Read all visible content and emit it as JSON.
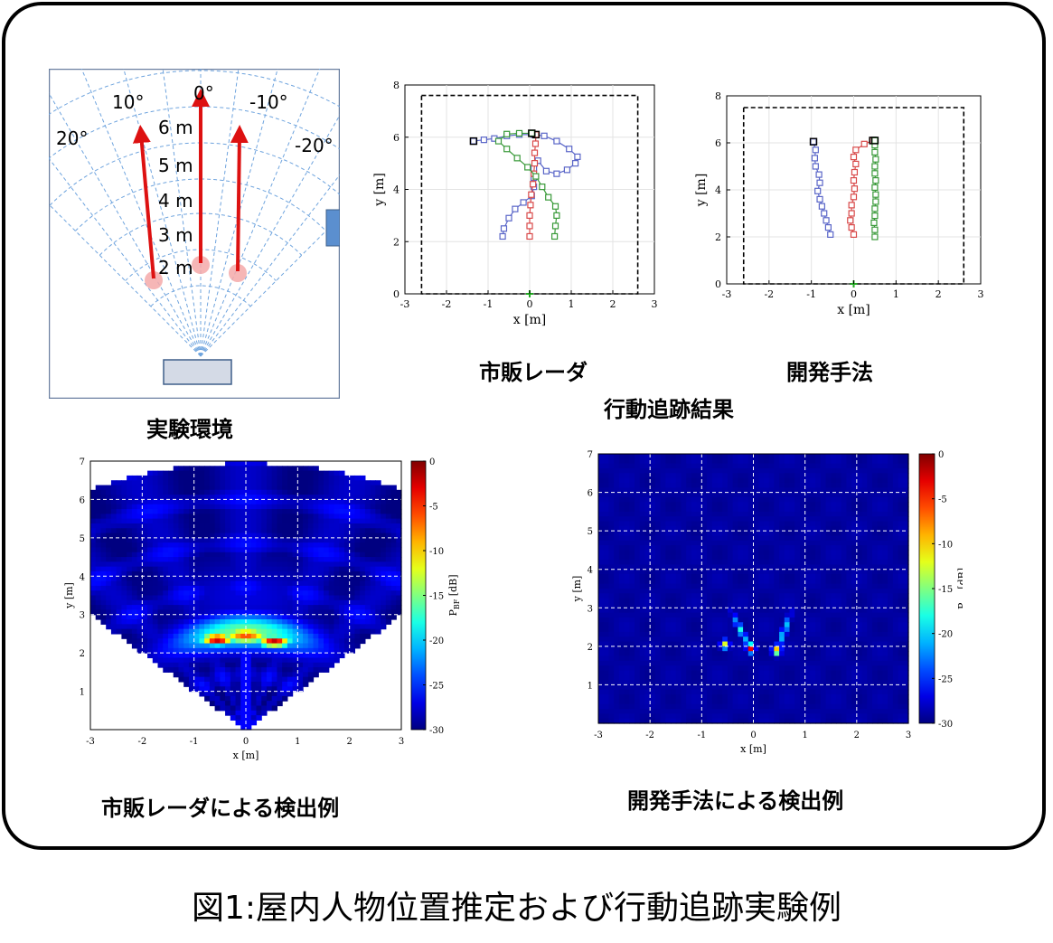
{
  "figure_title": "図1:屋内人物位置推定および行動追跡実験例",
  "captions": {
    "environment": "実験環境",
    "radar_track": "市販レーダ",
    "proposed_track": "開発手法",
    "tracking_result": "行動追跡結果",
    "radar_detect": "市販レーダによる検出例",
    "proposed_detect": "開発手法による検出例"
  },
  "environment": {
    "angle_labels": [
      "20°",
      "10°",
      "0°",
      "-10°",
      "-20°"
    ],
    "range_labels": [
      "6 m",
      "5 m",
      "4 m",
      "3 m",
      "2 m"
    ],
    "arrow_color": "#dd1111",
    "grid_color": "#6fa4de"
  },
  "chart_data": [
    {
      "type": "line",
      "name": "radar-tracks",
      "xlabel": "x [m]",
      "ylabel": "y [m]",
      "xlim": [
        -3,
        3
      ],
      "ylim": [
        0,
        8
      ],
      "xticks": [
        "-3",
        "-2",
        "-1",
        "0",
        "1",
        "2",
        "3"
      ],
      "yticks": [
        "0",
        "2",
        "4",
        "6",
        "8"
      ],
      "room_box": {
        "x": [
          -2.6,
          2.6
        ],
        "y": [
          0,
          7.6
        ]
      },
      "grid": true,
      "series": [
        {
          "color": "#5a66c8",
          "points": [
            [
              -0.65,
              2.2
            ],
            [
              -0.62,
              2.5
            ],
            [
              -0.5,
              2.9
            ],
            [
              -0.35,
              3.25
            ],
            [
              -0.15,
              3.5
            ],
            [
              0.05,
              3.75
            ],
            [
              0.1,
              4.1
            ],
            [
              0.1,
              4.45
            ],
            [
              0.1,
              4.8
            ],
            [
              0.2,
              5.1
            ],
            [
              0.4,
              4.7
            ],
            [
              0.65,
              4.6
            ],
            [
              0.9,
              4.75
            ],
            [
              1.1,
              5.0
            ],
            [
              1.15,
              5.25
            ],
            [
              0.95,
              5.55
            ],
            [
              0.65,
              5.85
            ],
            [
              0.35,
              6.05
            ],
            [
              0.1,
              6.1
            ],
            [
              -0.25,
              6.1
            ],
            [
              -0.55,
              6.05
            ],
            [
              -0.85,
              5.95
            ],
            [
              -1.1,
              5.9
            ],
            [
              -1.35,
              5.85
            ]
          ]
        },
        {
          "color": "#d94a4a",
          "points": [
            [
              0.0,
              2.2
            ],
            [
              0.0,
              2.6
            ],
            [
              0.0,
              3.0
            ],
            [
              0.02,
              3.4
            ],
            [
              0.04,
              3.8
            ],
            [
              0.08,
              4.2
            ],
            [
              0.1,
              4.6
            ],
            [
              0.12,
              5.0
            ],
            [
              0.12,
              5.4
            ],
            [
              0.14,
              5.75
            ],
            [
              0.15,
              6.1
            ]
          ]
        },
        {
          "color": "#3a9a3a",
          "points": [
            [
              0.6,
              2.2
            ],
            [
              0.62,
              2.6
            ],
            [
              0.65,
              3.0
            ],
            [
              0.62,
              3.35
            ],
            [
              0.45,
              3.7
            ],
            [
              0.3,
              4.1
            ],
            [
              0.15,
              4.5
            ],
            [
              -0.05,
              4.85
            ],
            [
              -0.3,
              5.2
            ],
            [
              -0.55,
              5.55
            ],
            [
              -0.75,
              5.85
            ],
            [
              -0.55,
              6.12
            ],
            [
              -0.25,
              6.15
            ],
            [
              0.05,
              6.15
            ]
          ]
        }
      ]
    },
    {
      "type": "line",
      "name": "proposed-tracks",
      "xlabel": "x [m]",
      "ylabel": "y [m]",
      "xlim": [
        -3,
        3
      ],
      "ylim": [
        0,
        8
      ],
      "xticks": [
        "-3",
        "-2",
        "-1",
        "0",
        "1",
        "2",
        "3"
      ],
      "yticks": [
        "0",
        "2",
        "4",
        "6",
        "8"
      ],
      "room_box": {
        "x": [
          -2.6,
          2.6
        ],
        "y": [
          0,
          7.5
        ]
      },
      "grid": true,
      "series": [
        {
          "color": "#5a66c8",
          "points": [
            [
              -0.55,
              2.1
            ],
            [
              -0.6,
              2.4
            ],
            [
              -0.65,
              2.7
            ],
            [
              -0.7,
              3.0
            ],
            [
              -0.75,
              3.3
            ],
            [
              -0.8,
              3.6
            ],
            [
              -0.85,
              3.95
            ],
            [
              -0.8,
              4.3
            ],
            [
              -0.82,
              4.65
            ],
            [
              -0.9,
              5.0
            ],
            [
              -0.92,
              5.35
            ],
            [
              -0.9,
              5.7
            ],
            [
              -0.95,
              6.05
            ]
          ]
        },
        {
          "color": "#d94a4a",
          "points": [
            [
              0.0,
              2.1
            ],
            [
              -0.05,
              2.4
            ],
            [
              -0.08,
              2.7
            ],
            [
              -0.05,
              3.0
            ],
            [
              -0.05,
              3.35
            ],
            [
              0.0,
              3.7
            ],
            [
              0.02,
              4.05
            ],
            [
              0.0,
              4.4
            ],
            [
              0.02,
              4.75
            ],
            [
              0.05,
              5.1
            ],
            [
              0.0,
              5.4
            ],
            [
              0.05,
              5.7
            ],
            [
              0.25,
              5.95
            ],
            [
              0.45,
              6.1
            ]
          ]
        },
        {
          "color": "#3a9a3a",
          "points": [
            [
              0.5,
              2.0
            ],
            [
              0.5,
              2.3
            ],
            [
              0.48,
              2.6
            ],
            [
              0.5,
              2.9
            ],
            [
              0.5,
              3.2
            ],
            [
              0.52,
              3.5
            ],
            [
              0.52,
              3.8
            ],
            [
              0.5,
              4.1
            ],
            [
              0.52,
              4.4
            ],
            [
              0.5,
              4.7
            ],
            [
              0.5,
              5.0
            ],
            [
              0.52,
              5.3
            ],
            [
              0.5,
              5.6
            ],
            [
              0.5,
              5.9
            ],
            [
              0.5,
              6.1
            ]
          ]
        }
      ]
    },
    {
      "type": "heatmap",
      "name": "radar-detection",
      "xlabel": "x [m]",
      "ylabel": "y [m]",
      "xlim": [
        -3,
        3
      ],
      "ylim": [
        0,
        7
      ],
      "xticks": [
        "-3",
        "-2",
        "-1",
        "0",
        "1",
        "2",
        "3"
      ],
      "yticks": [
        "1",
        "2",
        "3",
        "4",
        "5",
        "6",
        "7"
      ],
      "colorbar": {
        "label": "P",
        "sub": "BF",
        "unit": " [dB]",
        "range": [
          -30,
          0
        ],
        "ticks": [
          "0",
          "-5",
          "-10",
          "-15",
          "-20",
          "-25",
          "-30"
        ]
      },
      "peaks": [
        {
          "x": -0.55,
          "y": 2.35,
          "value": -1
        },
        {
          "x": 0.55,
          "y": 2.3,
          "value": -2
        },
        {
          "x": 0.0,
          "y": 2.45,
          "value": -6
        }
      ],
      "grid": true
    },
    {
      "type": "heatmap",
      "name": "proposed-detection",
      "xlabel": "x [m]",
      "ylabel": "y [m]",
      "xlim": [
        -3,
        3
      ],
      "ylim": [
        0,
        7
      ],
      "xticks": [
        "-3",
        "-2",
        "-1",
        "0",
        "1",
        "2",
        "3"
      ],
      "yticks": [
        "1",
        "2",
        "3",
        "4",
        "5",
        "6",
        "7"
      ],
      "colorbar": {
        "label": "P",
        "sub": "BF",
        "unit": " [dB]",
        "range": [
          -30,
          0
        ],
        "ticks": [
          "0",
          "-5",
          "-10",
          "-15",
          "-20",
          "-25",
          "-30"
        ]
      },
      "peaks": [
        {
          "x": -0.05,
          "y": 1.95,
          "value": -3
        },
        {
          "x": 0.45,
          "y": 1.9,
          "value": -8
        },
        {
          "x": -0.55,
          "y": 2.05,
          "value": -12
        }
      ],
      "grid": true
    }
  ]
}
